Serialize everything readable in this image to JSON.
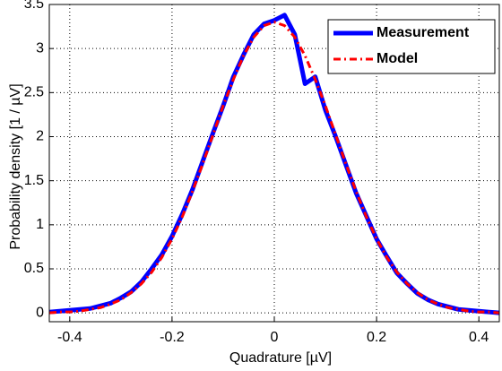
{
  "chart_data": {
    "type": "line",
    "x_label": "Quadrature  [µV]",
    "y_label": "Probability density  [1 / µV]",
    "x": [
      -0.44,
      -0.42,
      -0.4,
      -0.38,
      -0.36,
      -0.34,
      -0.32,
      -0.3,
      -0.28,
      -0.26,
      -0.24,
      -0.22,
      -0.2,
      -0.18,
      -0.16,
      -0.14,
      -0.12,
      -0.1,
      -0.08,
      -0.06,
      -0.04,
      -0.02,
      0,
      0.02,
      0.04,
      0.06,
      0.08,
      0.1,
      0.12,
      0.14,
      0.16,
      0.18,
      0.2,
      0.22,
      0.24,
      0.26,
      0.28,
      0.3,
      0.32,
      0.34,
      0.36,
      0.38,
      0.4,
      0.42,
      0.44
    ],
    "series": [
      {
        "name": "Measurement",
        "color": "#0000ff",
        "style": "solid",
        "values": [
          0.01,
          0.02,
          0.03,
          0.04,
          0.05,
          0.08,
          0.11,
          0.17,
          0.24,
          0.35,
          0.5,
          0.66,
          0.87,
          1.12,
          1.4,
          1.72,
          2.04,
          2.35,
          2.68,
          2.93,
          3.16,
          3.28,
          3.32,
          3.38,
          3.16,
          2.6,
          2.68,
          2.3,
          2.0,
          1.68,
          1.36,
          1.1,
          0.84,
          0.64,
          0.45,
          0.33,
          0.22,
          0.15,
          0.1,
          0.07,
          0.04,
          0.03,
          0.02,
          0.01,
          0.0
        ]
      },
      {
        "name": "Model",
        "color": "#ff0000",
        "style": "dashdot",
        "values": [
          0.0,
          0.01,
          0.01,
          0.02,
          0.04,
          0.06,
          0.1,
          0.15,
          0.23,
          0.33,
          0.46,
          0.63,
          0.84,
          1.09,
          1.38,
          1.69,
          2.02,
          2.35,
          2.65,
          2.92,
          3.13,
          3.26,
          3.3,
          3.26,
          3.13,
          2.92,
          2.65,
          2.35,
          2.02,
          1.69,
          1.38,
          1.09,
          0.84,
          0.63,
          0.46,
          0.33,
          0.23,
          0.15,
          0.1,
          0.06,
          0.04,
          0.02,
          0.01,
          0.01,
          0.0
        ]
      }
    ],
    "xlim": [
      -0.44,
      0.44
    ],
    "xticks": [
      -0.4,
      -0.2,
      0,
      0.2,
      0.4
    ],
    "ylim": [
      -0.1,
      3.5
    ],
    "yticks": [
      0,
      0.5,
      1,
      1.5,
      2,
      2.5,
      3,
      3.5
    ],
    "grid": true,
    "legend": "upper right"
  }
}
